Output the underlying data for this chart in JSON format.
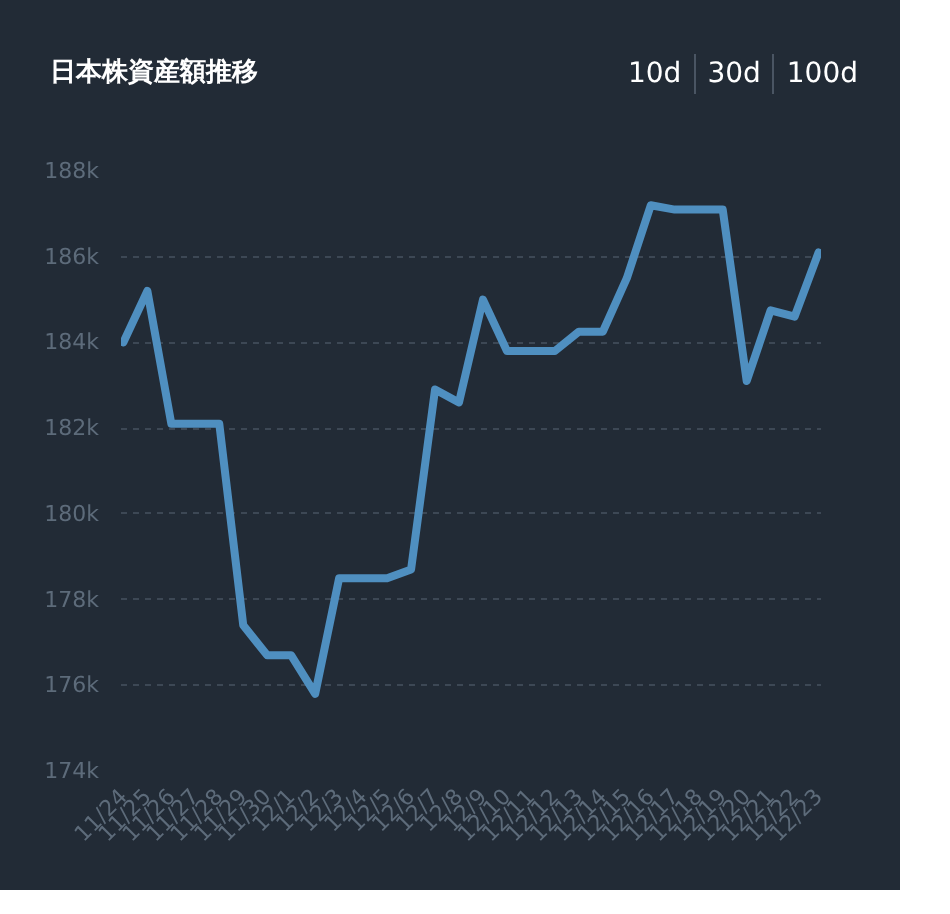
{
  "chart_data": {
    "type": "line",
    "title": "日本株資産額推移",
    "annotations": [
      "10d",
      "30d",
      "100d"
    ],
    "categories": [
      "11/24",
      "11/25",
      "11/26",
      "11/27",
      "11/28",
      "11/29",
      "11/30",
      "12/1",
      "12/2",
      "12/3",
      "12/4",
      "12/5",
      "12/6",
      "12/7",
      "12/8",
      "12/9",
      "12/10",
      "12/11",
      "12/12",
      "12/13",
      "12/14",
      "12/15",
      "12/16",
      "12/17",
      "12/18",
      "12/19",
      "12/20",
      "12/21",
      "12/22",
      "12/23"
    ],
    "series": [
      {
        "color": "#4f8fc0",
        "values": [
          184000,
          185200,
          182100,
          182100,
          182100,
          177400,
          176700,
          176700,
          175800,
          178500,
          178500,
          178500,
          178700,
          182900,
          182600,
          185000,
          183800,
          183800,
          183800,
          184250,
          184250,
          185500,
          187200,
          187100,
          187100,
          187100,
          183100,
          184750,
          184600,
          186100
        ]
      }
    ],
    "ylim": [
      174000,
      188000
    ],
    "yticks": [
      {
        "value": 174000,
        "label": "174k"
      },
      {
        "value": 176000,
        "label": "176k"
      },
      {
        "value": 178000,
        "label": "178k"
      },
      {
        "value": 180000,
        "label": "180k"
      },
      {
        "value": 182000,
        "label": "182k"
      },
      {
        "value": 184000,
        "label": "184k"
      },
      {
        "value": 186000,
        "label": "186k"
      },
      {
        "value": 188000,
        "label": "188k"
      }
    ],
    "grid": "y",
    "marker": "none",
    "line_style": "solid"
  }
}
